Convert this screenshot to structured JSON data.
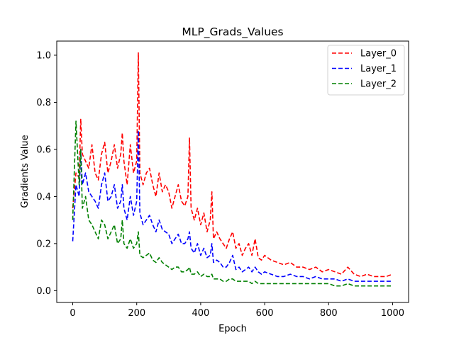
{
  "chart_data": {
    "type": "line",
    "title": "MLP_Grads_Values",
    "xlabel": "Epoch",
    "ylabel": "Gradients Value",
    "xlim": [
      -50,
      1050
    ],
    "ylim": [
      -0.05,
      1.06
    ],
    "xticks": [
      0,
      200,
      400,
      600,
      800,
      1000
    ],
    "yticks": [
      0.0,
      0.2,
      0.4,
      0.6,
      0.8,
      1.0
    ],
    "xtick_labels": [
      "0",
      "200",
      "400",
      "600",
      "800",
      "1000"
    ],
    "ytick_labels": [
      "0.0",
      "0.2",
      "0.4",
      "0.6",
      "0.8",
      "1.0"
    ],
    "grid": false,
    "legend_position": "top-right",
    "line_style": "dashed",
    "x": [
      0,
      10,
      20,
      25,
      30,
      40,
      50,
      60,
      70,
      80,
      90,
      100,
      110,
      120,
      130,
      140,
      150,
      155,
      160,
      170,
      180,
      190,
      200,
      205,
      210,
      220,
      230,
      240,
      250,
      260,
      270,
      280,
      290,
      300,
      310,
      320,
      330,
      340,
      350,
      360,
      365,
      370,
      380,
      390,
      400,
      410,
      420,
      430,
      435,
      440,
      450,
      460,
      470,
      480,
      490,
      500,
      510,
      520,
      530,
      540,
      550,
      560,
      570,
      580,
      590,
      600,
      620,
      640,
      660,
      680,
      700,
      720,
      740,
      760,
      780,
      800,
      820,
      840,
      860,
      880,
      900,
      920,
      940,
      960,
      980,
      1000
    ],
    "series": [
      {
        "name": "Layer_0",
        "color": "#ff0000",
        "values": [
          0.35,
          0.5,
          0.48,
          0.73,
          0.58,
          0.55,
          0.52,
          0.62,
          0.5,
          0.47,
          0.58,
          0.63,
          0.5,
          0.55,
          0.62,
          0.52,
          0.58,
          0.67,
          0.55,
          0.45,
          0.62,
          0.5,
          0.55,
          1.01,
          0.5,
          0.45,
          0.5,
          0.52,
          0.45,
          0.4,
          0.5,
          0.42,
          0.45,
          0.42,
          0.35,
          0.4,
          0.45,
          0.38,
          0.36,
          0.4,
          0.65,
          0.35,
          0.3,
          0.35,
          0.28,
          0.33,
          0.25,
          0.3,
          0.42,
          0.22,
          0.25,
          0.22,
          0.2,
          0.18,
          0.22,
          0.25,
          0.18,
          0.2,
          0.15,
          0.18,
          0.2,
          0.15,
          0.22,
          0.14,
          0.13,
          0.15,
          0.13,
          0.12,
          0.11,
          0.12,
          0.1,
          0.1,
          0.09,
          0.1,
          0.08,
          0.09,
          0.08,
          0.07,
          0.1,
          0.07,
          0.06,
          0.07,
          0.06,
          0.06,
          0.06,
          0.07
        ]
      },
      {
        "name": "Layer_1",
        "color": "#0000ff",
        "values": [
          0.21,
          0.45,
          0.4,
          0.6,
          0.45,
          0.5,
          0.42,
          0.4,
          0.38,
          0.35,
          0.45,
          0.5,
          0.38,
          0.4,
          0.45,
          0.35,
          0.38,
          0.45,
          0.35,
          0.3,
          0.4,
          0.32,
          0.38,
          0.68,
          0.33,
          0.28,
          0.3,
          0.32,
          0.28,
          0.25,
          0.3,
          0.26,
          0.25,
          0.24,
          0.2,
          0.22,
          0.24,
          0.2,
          0.2,
          0.22,
          0.25,
          0.18,
          0.16,
          0.2,
          0.15,
          0.18,
          0.14,
          0.15,
          0.2,
          0.12,
          0.13,
          0.12,
          0.1,
          0.1,
          0.12,
          0.15,
          0.09,
          0.1,
          0.08,
          0.09,
          0.1,
          0.08,
          0.1,
          0.08,
          0.07,
          0.08,
          0.07,
          0.06,
          0.06,
          0.07,
          0.06,
          0.06,
          0.05,
          0.06,
          0.05,
          0.05,
          0.05,
          0.04,
          0.05,
          0.04,
          0.04,
          0.04,
          0.04,
          0.04,
          0.04,
          0.04
        ]
      },
      {
        "name": "Layer_2",
        "color": "#008000",
        "values": [
          0.3,
          0.72,
          0.45,
          0.6,
          0.35,
          0.4,
          0.3,
          0.28,
          0.25,
          0.22,
          0.3,
          0.28,
          0.22,
          0.25,
          0.28,
          0.2,
          0.22,
          0.3,
          0.2,
          0.18,
          0.22,
          0.18,
          0.2,
          0.25,
          0.15,
          0.14,
          0.15,
          0.16,
          0.13,
          0.12,
          0.14,
          0.12,
          0.11,
          0.1,
          0.09,
          0.1,
          0.1,
          0.08,
          0.08,
          0.09,
          0.1,
          0.07,
          0.07,
          0.08,
          0.06,
          0.07,
          0.06,
          0.06,
          0.07,
          0.05,
          0.05,
          0.05,
          0.04,
          0.04,
          0.05,
          0.05,
          0.04,
          0.04,
          0.04,
          0.04,
          0.04,
          0.03,
          0.04,
          0.03,
          0.03,
          0.03,
          0.03,
          0.03,
          0.03,
          0.03,
          0.03,
          0.03,
          0.03,
          0.03,
          0.03,
          0.03,
          0.02,
          0.02,
          0.03,
          0.02,
          0.02,
          0.02,
          0.02,
          0.02,
          0.02,
          0.02
        ]
      }
    ]
  }
}
